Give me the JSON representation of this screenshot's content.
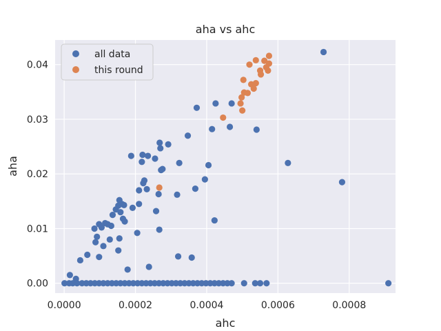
{
  "chart_data": {
    "type": "scatter",
    "title": "aha vs ahc",
    "xlabel": "ahc",
    "ylabel": "aha",
    "xlim": [
      -2.54e-05,
      0.00093
    ],
    "ylim": [
      -0.0018,
      0.0445
    ],
    "xticks": [
      0.0,
      0.0002,
      0.0004,
      0.0006,
      0.0008
    ],
    "xtick_labels": [
      "0.0000",
      "0.0002",
      "0.0004",
      "0.0006",
      "0.0008"
    ],
    "yticks": [
      0.0,
      0.01,
      0.02,
      0.03,
      0.04
    ],
    "ytick_labels": [
      "0.00",
      "0.01",
      "0.02",
      "0.03",
      "0.04"
    ],
    "grid": true,
    "legend_position": "top-left",
    "series": [
      {
        "name": "all data",
        "color": "#4c72b0",
        "points": [
          [
            1e-06,
            0.0
          ],
          [
            1.4e-05,
            0.0
          ],
          [
            2.4e-05,
            0.0
          ],
          [
            3.6e-05,
            0.0
          ],
          [
            5e-05,
            0.0
          ],
          [
            6.2e-05,
            0.0
          ],
          [
            7.4e-05,
            0.0
          ],
          [
            8.6e-05,
            0.0
          ],
          [
            9.8e-05,
            0.0
          ],
          [
            0.00011,
            0.0
          ],
          [
            0.000122,
            0.0
          ],
          [
            0.000134,
            0.0
          ],
          [
            0.000146,
            0.0
          ],
          [
            0.000158,
            0.0
          ],
          [
            0.00017,
            0.0
          ],
          [
            0.000182,
            0.0
          ],
          [
            0.000194,
            0.0
          ],
          [
            0.000206,
            0.0
          ],
          [
            0.000218,
            0.0
          ],
          [
            0.00023,
            0.0
          ],
          [
            0.000242,
            0.0
          ],
          [
            0.000254,
            0.0
          ],
          [
            0.000266,
            0.0
          ],
          [
            0.000278,
            0.0
          ],
          [
            0.00029,
            0.0
          ],
          [
            0.000302,
            0.0
          ],
          [
            0.000314,
            0.0
          ],
          [
            0.000326,
            0.0
          ],
          [
            0.000338,
            0.0
          ],
          [
            0.00035,
            0.0
          ],
          [
            0.000362,
            0.0
          ],
          [
            0.000374,
            0.0
          ],
          [
            0.000386,
            0.0
          ],
          [
            0.000398,
            0.0
          ],
          [
            0.00041,
            0.0
          ],
          [
            0.000422,
            0.0
          ],
          [
            0.000434,
            0.0
          ],
          [
            0.000446,
            0.0
          ],
          [
            0.000458,
            0.0
          ],
          [
            0.00047,
            0.0
          ],
          [
            0.000505,
            0.0
          ],
          [
            0.000536,
            0.0
          ],
          [
            0.00055,
            0.0
          ],
          [
            0.000568,
            0.0
          ],
          [
            0.00091,
            0.0
          ],
          [
            1.6e-05,
            0.0015
          ],
          [
            3.3e-05,
            0.0008
          ],
          [
            4.5e-05,
            0.0042
          ],
          [
            6.5e-05,
            0.0052
          ],
          [
            8.8e-05,
            0.0075
          ],
          [
            8.5e-05,
            0.01
          ],
          [
            9.8e-05,
            0.0108
          ],
          [
            0.000105,
            0.0102
          ],
          [
            0.00011,
            0.0068
          ],
          [
            0.000115,
            0.011
          ],
          [
            0.000122,
            0.0108
          ],
          [
            0.000128,
            0.008
          ],
          [
            0.000132,
            0.0105
          ],
          [
            0.000136,
            0.0125
          ],
          [
            9.8e-05,
            0.0048
          ],
          [
            9.2e-05,
            0.0085
          ],
          [
            0.000145,
            0.0135
          ],
          [
            0.000152,
            0.0142
          ],
          [
            0.000155,
            0.0152
          ],
          [
            0.000158,
            0.013
          ],
          [
            0.000162,
            0.0145
          ],
          [
            0.000165,
            0.0118
          ],
          [
            0.000168,
            0.0143
          ],
          [
            0.00017,
            0.0113
          ],
          [
            0.000155,
            0.0082
          ],
          [
            0.000152,
            0.006
          ],
          [
            0.000178,
            0.0025
          ],
          [
            0.000188,
            0.0233
          ],
          [
            0.000192,
            0.0138
          ],
          [
            0.000205,
            0.0092
          ],
          [
            0.00021,
            0.0145
          ],
          [
            0.00021,
            0.017
          ],
          [
            0.000218,
            0.0222
          ],
          [
            0.00022,
            0.0235
          ],
          [
            0.000222,
            0.0183
          ],
          [
            0.000225,
            0.0188
          ],
          [
            0.000232,
            0.0172
          ],
          [
            0.000235,
            0.0233
          ],
          [
            0.000238,
            0.003
          ],
          [
            0.000255,
            0.0228
          ],
          [
            0.000258,
            0.0132
          ],
          [
            0.000265,
            0.0163
          ],
          [
            0.000267,
            0.0098
          ],
          [
            0.000268,
            0.0257
          ],
          [
            0.00027,
            0.0247
          ],
          [
            0.000272,
            0.0207
          ],
          [
            0.000276,
            0.0209
          ],
          [
            0.000292,
            0.0254
          ],
          [
            0.000317,
            0.0162
          ],
          [
            0.000323,
            0.022
          ],
          [
            0.00032,
            0.0049
          ],
          [
            0.000347,
            0.027
          ],
          [
            0.000358,
            0.0047
          ],
          [
            0.000368,
            0.0173
          ],
          [
            0.000372,
            0.0321
          ],
          [
            0.000395,
            0.019
          ],
          [
            0.000405,
            0.0216
          ],
          [
            0.000415,
            0.0282
          ],
          [
            0.000422,
            0.0115
          ],
          [
            0.000425,
            0.0329
          ],
          [
            0.000465,
            0.0286
          ],
          [
            0.00047,
            0.0329
          ],
          [
            0.00054,
            0.0281
          ],
          [
            0.000628,
            0.022
          ],
          [
            0.000728,
            0.0423
          ],
          [
            0.00078,
            0.0185
          ]
        ]
      },
      {
        "name": "this round",
        "color": "#dd8452",
        "points": [
          [
            0.000267,
            0.0175
          ],
          [
            0.000446,
            0.0303
          ],
          [
            0.000495,
            0.0329
          ],
          [
            0.000498,
            0.034
          ],
          [
            0.0005,
            0.0316
          ],
          [
            0.000503,
            0.0372
          ],
          [
            0.000505,
            0.0349
          ],
          [
            0.000515,
            0.0348
          ],
          [
            0.00052,
            0.04
          ],
          [
            0.000525,
            0.0364
          ],
          [
            0.000532,
            0.0356
          ],
          [
            0.000538,
            0.0366
          ],
          [
            0.000538,
            0.0408
          ],
          [
            0.00055,
            0.0389
          ],
          [
            0.000552,
            0.0382
          ],
          [
            0.000562,
            0.0407
          ],
          [
            0.000567,
            0.0395
          ],
          [
            0.000572,
            0.0389
          ],
          [
            0.000575,
            0.0402
          ],
          [
            0.000575,
            0.0416
          ]
        ]
      }
    ]
  }
}
